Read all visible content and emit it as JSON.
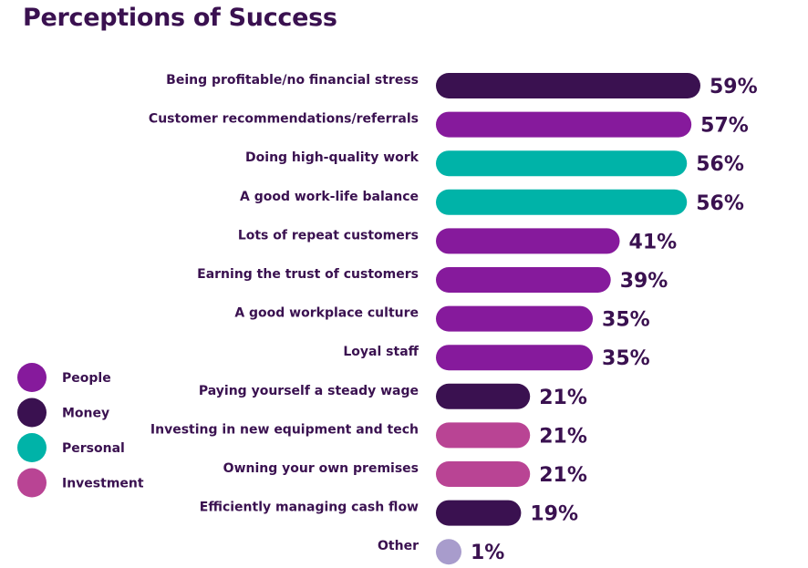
{
  "chart_data": {
    "type": "bar",
    "orientation": "horizontal",
    "title": "Perceptions of Success",
    "categories": [
      "Being profitable/no financial stress",
      "Customer recommendations/referrals",
      "Doing high-quality work",
      "A good work-life balance",
      "Lots of repeat customers",
      "Earning the trust of customers",
      "A good workplace culture",
      "Loyal staff",
      "Paying yourself a steady wage",
      "Investing in new equipment and tech",
      "Owning your own premises",
      "Efficiently managing cash flow",
      "Other"
    ],
    "values": [
      59,
      57,
      56,
      56,
      41,
      39,
      35,
      35,
      21,
      21,
      21,
      19,
      1
    ],
    "value_labels": [
      "59%",
      "57%",
      "56%",
      "56%",
      "41%",
      "39%",
      "35%",
      "35%",
      "21%",
      "21%",
      "21%",
      "19%",
      "1%"
    ],
    "groups": [
      "Money",
      "People",
      "Personal",
      "Personal",
      "People",
      "People",
      "People",
      "People",
      "Money",
      "Investment",
      "Investment",
      "Money",
      "Other"
    ],
    "legend": [
      {
        "name": "People",
        "color": "#861a9c"
      },
      {
        "name": "Money",
        "color": "#3a1150"
      },
      {
        "name": "Personal",
        "color": "#00b3a8"
      },
      {
        "name": "Investment",
        "color": "#b94494"
      }
    ],
    "other_color": "#a89ccc",
    "legend_position": "left",
    "xlim": [
      0,
      59
    ],
    "grid": false
  }
}
